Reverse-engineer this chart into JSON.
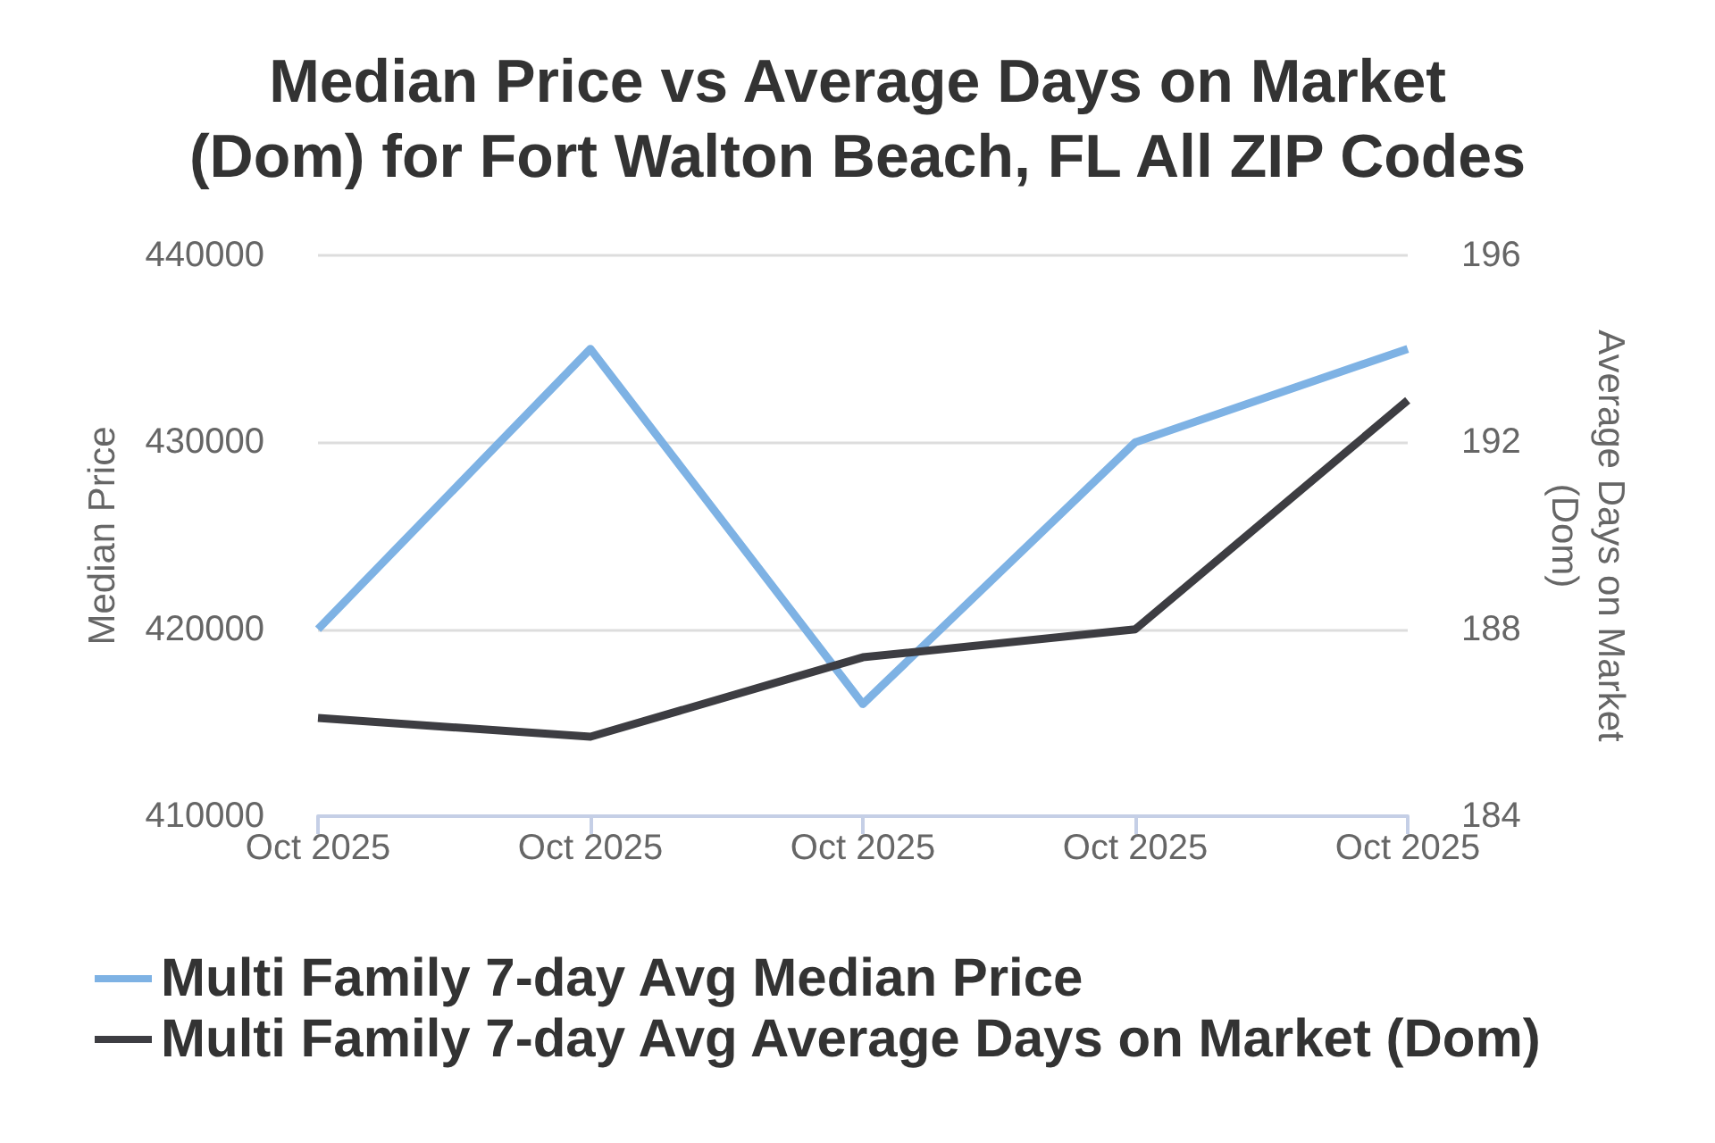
{
  "chart_data": {
    "type": "line",
    "title": "Median Price vs Average Days on Market\n(Dom) for Fort Walton Beach, FL All ZIP Codes",
    "ylabel": "Median Price",
    "y2label": "Average Days on Market\n(Dom)",
    "categories": [
      "Oct 2025",
      "Oct 2025",
      "Oct 2025",
      "Oct 2025",
      "Oct 2025"
    ],
    "series": [
      {
        "name": "Multi Family 7-day Avg Median Price",
        "color": "#7eb2e4",
        "values": [
          420000,
          435000,
          416000,
          430000,
          435000
        ]
      },
      {
        "name": "Multi Family 7-day Avg Average Days on Market (Dom)",
        "color": "#3d3d42",
        "axis": "y2",
        "values": [
          186.1,
          185.7,
          187.4,
          188.0,
          192.9
        ]
      }
    ],
    "ylim": [
      410000,
      440000
    ],
    "yticks": [
      410000,
      420000,
      430000,
      440000
    ],
    "y2lim": [
      184,
      196
    ],
    "y2ticks": [
      184,
      188,
      192,
      196
    ],
    "grid": "y",
    "legend": "bottom",
    "marker": "none",
    "line_style": "solid"
  }
}
